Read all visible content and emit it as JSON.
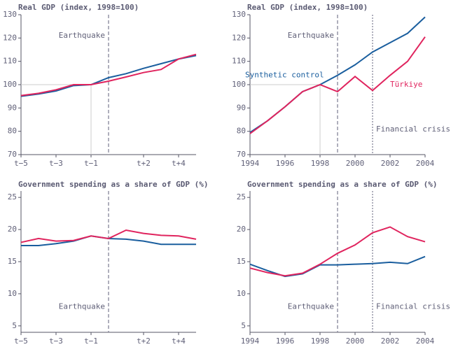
{
  "chart_data": [
    {
      "type": "line",
      "title": "Real GDP (index, 1998=100)",
      "x": [
        -5,
        -4,
        -3,
        -2,
        -1,
        0,
        1,
        2,
        3,
        4,
        5
      ],
      "series": [
        {
          "color": "#1a5e9e",
          "values": [
            95,
            96,
            97.3,
            99.6,
            100,
            103,
            104.7,
            107,
            109,
            111,
            112.5
          ]
        },
        {
          "color": "#e0245e",
          "values": [
            95.3,
            96.3,
            97.8,
            100,
            100,
            101.5,
            103.3,
            105.2,
            106.5,
            111,
            113
          ]
        }
      ],
      "xlim": [
        -5,
        5
      ],
      "ylim": [
        70,
        130
      ],
      "xticks": [
        {
          "value": -5,
          "label": "t−5"
        },
        {
          "value": -3,
          "label": "t−3"
        },
        {
          "value": -1,
          "label": "t−1"
        },
        {
          "value": 2,
          "label": "t+2"
        },
        {
          "value": 4,
          "label": "t+4"
        }
      ],
      "yticks": [
        70,
        80,
        90,
        100,
        110,
        120,
        130
      ],
      "reference": {
        "x": -1,
        "y": 100
      },
      "events": [
        {
          "x": 0,
          "label": "Earthquake",
          "style": "dashed"
        }
      ]
    },
    {
      "type": "line",
      "title": "Real GDP (index, 1998=100)",
      "x": [
        1994,
        1995,
        1996,
        1997,
        1998,
        1999,
        2000,
        2001,
        2002,
        2003,
        2004
      ],
      "series": [
        {
          "name": "Synthetic control",
          "color": "#1a5e9e",
          "values": [
            79.5,
            84.5,
            90.5,
            97,
            100,
            104,
            108.5,
            114,
            118,
            122,
            129
          ]
        },
        {
          "name": "Türkiye",
          "color": "#e0245e",
          "values": [
            79,
            84.5,
            90.5,
            97,
            100,
            97,
            103.5,
            97.5,
            104,
            110,
            120.5
          ]
        }
      ],
      "xlim": [
        1994,
        2004
      ],
      "ylim": [
        70,
        130
      ],
      "xticks": [
        1994,
        1996,
        1998,
        2000,
        2002,
        2004
      ],
      "yticks": [
        70,
        80,
        90,
        100,
        110,
        120,
        130
      ],
      "reference": {
        "x": 1998,
        "y": 100
      },
      "events": [
        {
          "x": 1999,
          "label": "Earthquake",
          "style": "dashed"
        },
        {
          "x": 2001,
          "label": "Financial crisis",
          "style": "dotted"
        }
      ]
    },
    {
      "type": "line",
      "title": "Government spending as a share of GDP (%)",
      "x": [
        -5,
        -4,
        -3,
        -2,
        -1,
        0,
        1,
        2,
        3,
        4,
        5
      ],
      "series": [
        {
          "color": "#1a5e9e",
          "values": [
            17.5,
            17.5,
            17.8,
            18.2,
            19,
            18.6,
            18.5,
            18.2,
            17.7,
            17.7,
            17.7
          ]
        },
        {
          "color": "#e0245e",
          "values": [
            18,
            18.6,
            18.2,
            18.3,
            19,
            18.6,
            19.9,
            19.4,
            19.1,
            19,
            18.5
          ]
        }
      ],
      "xlim": [
        -5,
        5
      ],
      "ylim": [
        4,
        26
      ],
      "xticks": [
        {
          "value": -5,
          "label": "t−5"
        },
        {
          "value": -3,
          "label": "t−3"
        },
        {
          "value": -1,
          "label": "t−1"
        },
        {
          "value": 2,
          "label": "t+2"
        },
        {
          "value": 4,
          "label": "t+4"
        }
      ],
      "yticks": [
        5,
        10,
        15,
        20,
        25
      ],
      "events": [
        {
          "x": 0,
          "label": "Earthquake",
          "style": "dashed"
        }
      ]
    },
    {
      "type": "line",
      "title": "Government spending as a share of GDP (%)",
      "x": [
        1994,
        1995,
        1996,
        1997,
        1998,
        1999,
        2000,
        2001,
        2002,
        2003,
        2004
      ],
      "series": [
        {
          "color": "#1a5e9e",
          "values": [
            14.6,
            13.6,
            12.7,
            13.1,
            14.5,
            14.5,
            14.6,
            14.7,
            14.9,
            14.7,
            15.8
          ]
        },
        {
          "color": "#e0245e",
          "values": [
            14,
            13.3,
            12.8,
            13.2,
            14.6,
            16.3,
            17.6,
            19.5,
            20.4,
            18.9,
            18.1
          ]
        }
      ],
      "xlim": [
        1994,
        2004
      ],
      "ylim": [
        4,
        26
      ],
      "xticks": [
        1994,
        1996,
        1998,
        2000,
        2002,
        2004
      ],
      "yticks": [
        5,
        10,
        15,
        20,
        25
      ],
      "events": [
        {
          "x": 1999,
          "label": "Earthquake",
          "style": "dashed"
        },
        {
          "x": 2001,
          "label": "Financial crisis",
          "style": "dotted"
        }
      ]
    }
  ]
}
